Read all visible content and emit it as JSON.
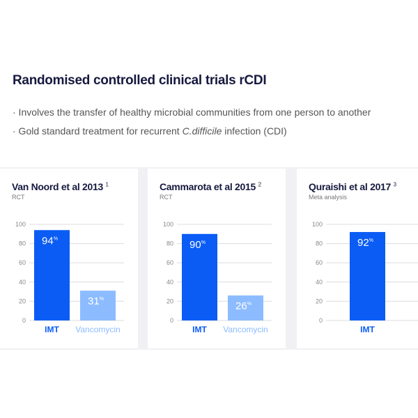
{
  "title": "Randomised controlled clinical trials rCDI",
  "bullets": [
    {
      "pre": "· Involves the transfer of healthy microbial communities from one person to another",
      "em": "",
      "post": ""
    },
    {
      "pre": "· Gold standard treatment for recurrent ",
      "em": "C.difficile",
      "post": " infection (CDI)"
    }
  ],
  "colors": {
    "imt": "#0a5cf5",
    "vancomycin": "#8cbcff",
    "title": "#16193f"
  },
  "chart_data": [
    {
      "type": "bar",
      "title": "Van Noord et al 2013",
      "ref": "1",
      "subtitle": "RCT",
      "categories": [
        "IMT",
        "Vancomycin"
      ],
      "values": [
        94,
        31
      ],
      "value_labels": [
        "94",
        "31"
      ],
      "unit": "%",
      "ylim": [
        0,
        100
      ],
      "yticks": [
        0,
        20,
        40,
        60,
        80,
        100
      ]
    },
    {
      "type": "bar",
      "title": "Cammarota et al 2015",
      "ref": "2",
      "subtitle": "RCT",
      "categories": [
        "IMT",
        "Vancomycin"
      ],
      "values": [
        90,
        26
      ],
      "value_labels": [
        "90",
        "26"
      ],
      "unit": "%",
      "ylim": [
        0,
        100
      ],
      "yticks": [
        0,
        20,
        40,
        60,
        80,
        100
      ]
    },
    {
      "type": "bar",
      "title": "Quraishi et al 2017",
      "ref": "3",
      "subtitle": "Meta analysis",
      "categories": [
        "IMT"
      ],
      "values": [
        92
      ],
      "value_labels": [
        "92"
      ],
      "unit": "%",
      "ylim": [
        0,
        100
      ],
      "yticks": [
        0,
        20,
        40,
        60,
        80,
        100
      ]
    }
  ]
}
